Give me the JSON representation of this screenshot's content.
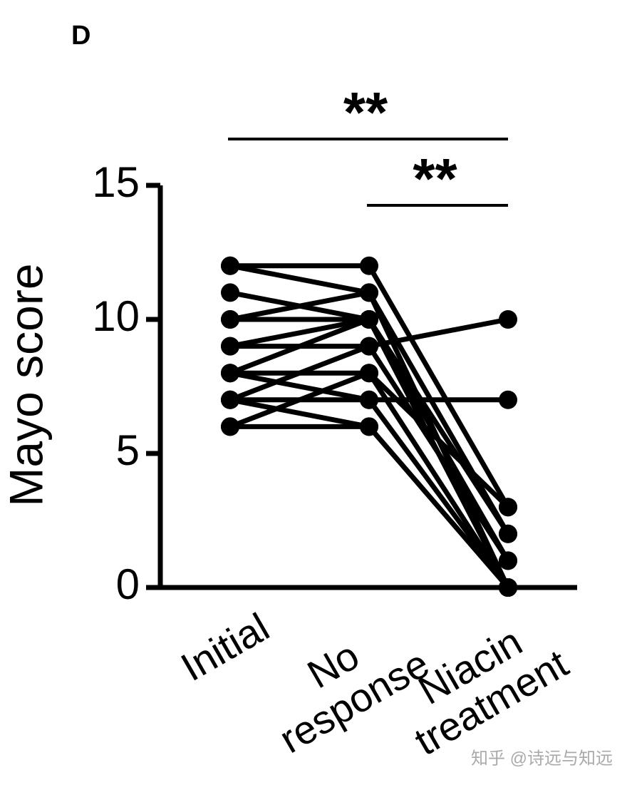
{
  "chart_data": {
    "type": "paired-line",
    "panel_label": "D",
    "y_label": "Mayo score",
    "categories": [
      "Initial",
      "No\nresponse",
      "Niacin\ntreatment"
    ],
    "color": "#000000",
    "ylim": [
      0,
      15
    ],
    "yticks": [
      0,
      5,
      10,
      15
    ],
    "series": [
      {
        "values": [
          12,
          12,
          3
        ]
      },
      {
        "values": [
          12,
          11,
          2
        ]
      },
      {
        "values": [
          11,
          10,
          1
        ]
      },
      {
        "values": [
          10,
          11,
          0
        ]
      },
      {
        "values": [
          10,
          10,
          0
        ]
      },
      {
        "values": [
          9,
          10,
          0
        ]
      },
      {
        "values": [
          9,
          9,
          10
        ]
      },
      {
        "values": [
          8,
          10,
          2
        ]
      },
      {
        "values": [
          8,
          8,
          0
        ]
      },
      {
        "values": [
          7,
          9,
          1
        ]
      },
      {
        "values": [
          7,
          7,
          7
        ]
      },
      {
        "values": [
          8,
          7,
          0
        ]
      },
      {
        "values": [
          6,
          8,
          3
        ]
      },
      {
        "values": [
          6,
          6,
          0
        ]
      },
      {
        "values": [
          7,
          6,
          0
        ]
      }
    ],
    "annotations": [
      {
        "text": "**",
        "from": 0,
        "to": 2
      },
      {
        "text": "**",
        "from": 1,
        "to": 2
      }
    ],
    "watermark": "知乎 @诗远与知远"
  }
}
